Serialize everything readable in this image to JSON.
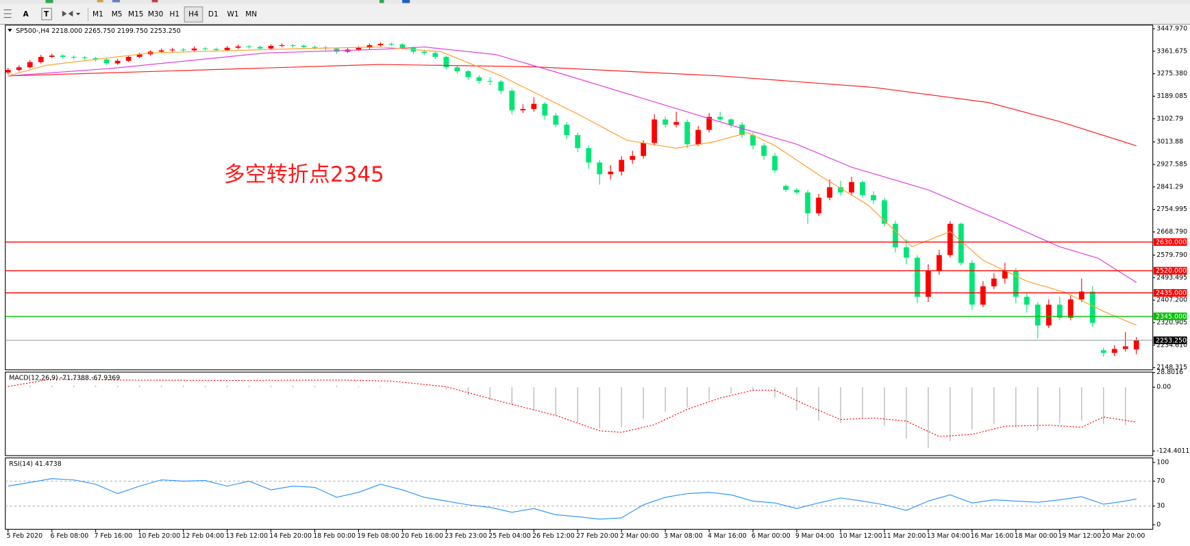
{
  "toolbar": {
    "tools": [
      "A",
      "T"
    ],
    "timeframes": [
      "M1",
      "M5",
      "M15",
      "M30",
      "H1",
      "H4",
      "D1",
      "W1",
      "MN"
    ],
    "selected": "H4"
  },
  "chart_data": [
    {
      "type": "candlestick",
      "title": "SP500-,H4  2218.000 2265.750 2199.750 2253.250",
      "annotation": "多空转折点2345",
      "up_color": "#ff0000",
      "down_color": "#00e676",
      "x": [
        0,
        2,
        4,
        6,
        8,
        10,
        12,
        14,
        16,
        18,
        20,
        22,
        24,
        26,
        28,
        30,
        32,
        34,
        36,
        38,
        40,
        42,
        44,
        46,
        48,
        50,
        52,
        54,
        56,
        58,
        60,
        62,
        64,
        66,
        68,
        70,
        72,
        74,
        76,
        78,
        80,
        82,
        84,
        86,
        88,
        90,
        92,
        94,
        96,
        98,
        100,
        102,
        104,
        106,
        108,
        110,
        112,
        114,
        116,
        118,
        120,
        122,
        124,
        126,
        128,
        130,
        132,
        134,
        136,
        138,
        140,
        142,
        144,
        146,
        148,
        150,
        152,
        154,
        156,
        158,
        160,
        162,
        164,
        166,
        168,
        170,
        172,
        174,
        176,
        178,
        180,
        182,
        184,
        186,
        188,
        190,
        192,
        194,
        196,
        198,
        200,
        202,
        204,
        206
      ],
      "open": [
        3280,
        3290,
        3300,
        3320,
        3340,
        3345,
        3340,
        3338,
        3335,
        3330,
        3315,
        3325,
        3340,
        3350,
        3360,
        3365,
        3368,
        3365,
        3372,
        3370,
        3366,
        3375,
        3380,
        3378,
        3372,
        3382,
        3385,
        3383,
        3378,
        3376,
        3372,
        3360,
        3368,
        3375,
        3385,
        3390,
        3388,
        3375,
        3360,
        3355,
        3340,
        3300,
        3285,
        3262,
        3248,
        3245,
        3210,
        3135,
        3140,
        3160,
        3115,
        3080,
        3040,
        2990,
        2935,
        2890,
        2900,
        2945,
        2960,
        3010,
        3100,
        3080,
        3090,
        3005,
        3060,
        3110,
        3100,
        3080,
        3040,
        3000,
        2960,
        2845,
        2830,
        2820,
        2740,
        2800,
        2840,
        2820,
        2860,
        2810,
        2790,
        2700,
        2610,
        2570,
        2420,
        2520,
        2580,
        2700,
        2550,
        2390,
        2460,
        2490,
        2520,
        2420,
        2390,
        2310,
        2390,
        2340,
        2410,
        2440,
        2215,
        2205,
        2220,
        2218
      ],
      "high": [
        3298,
        3308,
        3328,
        3348,
        3352,
        3350,
        3346,
        3344,
        3340,
        3335,
        3332,
        3346,
        3356,
        3366,
        3372,
        3375,
        3374,
        3380,
        3378,
        3376,
        3382,
        3387,
        3386,
        3384,
        3388,
        3392,
        3390,
        3388,
        3384,
        3382,
        3376,
        3374,
        3381,
        3391,
        3396,
        3395,
        3392,
        3380,
        3366,
        3360,
        3345,
        3306,
        3290,
        3270,
        3262,
        3252,
        3218,
        3158,
        3185,
        3168,
        3125,
        3090,
        3050,
        3000,
        2945,
        2925,
        2960,
        2980,
        3020,
        3120,
        3112,
        3130,
        3100,
        3075,
        3125,
        3130,
        3105,
        3090,
        3050,
        3010,
        2972,
        2850,
        2838,
        2830,
        2815,
        2870,
        2865,
        2880,
        2866,
        2825,
        2800,
        2712,
        2640,
        2580,
        2545,
        2600,
        2710,
        2705,
        2560,
        2480,
        2510,
        2550,
        2530,
        2435,
        2400,
        2410,
        2420,
        2425,
        2490,
        2460,
        2225,
        2235,
        2285,
        2265.75
      ],
      "low": [
        3272,
        3285,
        3295,
        3315,
        3335,
        3333,
        3330,
        3328,
        3322,
        3308,
        3310,
        3320,
        3335,
        3345,
        3355,
        3360,
        3358,
        3360,
        3364,
        3360,
        3362,
        3370,
        3372,
        3366,
        3368,
        3377,
        3376,
        3371,
        3368,
        3364,
        3352,
        3355,
        3363,
        3370,
        3380,
        3381,
        3368,
        3352,
        3347,
        3332,
        3292,
        3276,
        3252,
        3238,
        3232,
        3198,
        3120,
        3125,
        3130,
        3100,
        3070,
        3025,
        2975,
        2910,
        2850,
        2870,
        2885,
        2930,
        2950,
        3000,
        3070,
        3070,
        2990,
        2998,
        3050,
        3092,
        3068,
        3030,
        2985,
        2945,
        2895,
        2822,
        2812,
        2700,
        2730,
        2790,
        2808,
        2812,
        2800,
        2775,
        2690,
        2590,
        2545,
        2395,
        2400,
        2505,
        2570,
        2540,
        2370,
        2380,
        2450,
        2470,
        2395,
        2360,
        2260,
        2300,
        2330,
        2330,
        2400,
        2305,
        2190,
        2192,
        2210,
        2199.75
      ],
      "close": [
        3290,
        3300,
        3320,
        3340,
        3345,
        3340,
        3338,
        3335,
        3330,
        3315,
        3325,
        3340,
        3350,
        3360,
        3365,
        3368,
        3365,
        3372,
        3370,
        3366,
        3375,
        3380,
        3378,
        3372,
        3382,
        3385,
        3383,
        3378,
        3376,
        3372,
        3360,
        3368,
        3375,
        3385,
        3390,
        3388,
        3375,
        3360,
        3355,
        3340,
        3300,
        3285,
        3262,
        3248,
        3245,
        3210,
        3135,
        3140,
        3160,
        3115,
        3080,
        3040,
        2990,
        2935,
        2890,
        2900,
        2945,
        2960,
        3010,
        3100,
        3080,
        3090,
        3005,
        3060,
        3110,
        3100,
        3080,
        3040,
        3000,
        2960,
        2905,
        2830,
        2820,
        2740,
        2800,
        2840,
        2820,
        2860,
        2810,
        2790,
        2700,
        2610,
        2570,
        2420,
        2520,
        2580,
        2700,
        2550,
        2390,
        2460,
        2490,
        2520,
        2420,
        2390,
        2310,
        2390,
        2340,
        2410,
        2440,
        2320,
        2205,
        2220,
        2230,
        2253.25
      ],
      "series": [
        {
          "color": "#ff2020",
          "x": [
            0,
            68,
            96,
            130,
            158,
            179,
            192,
            206
          ],
          "values": [
            3267,
            3311,
            3302,
            3267,
            3223,
            3165,
            3092,
            2999
          ]
        },
        {
          "color": "#e040e0",
          "x": [
            0,
            19,
            47,
            68,
            76,
            89,
            100,
            116,
            132,
            144,
            154,
            168,
            181,
            192,
            199,
            206
          ],
          "values": [
            3267,
            3296,
            3355,
            3369,
            3378,
            3349,
            3282,
            3180,
            3078,
            3005,
            2917,
            2830,
            2714,
            2612,
            2568,
            2475
          ]
        },
        {
          "color": "#ffa030",
          "x": [
            0,
            7,
            26,
            54,
            68,
            79,
            90,
            104,
            113,
            122,
            129,
            135,
            140,
            149,
            157,
            165,
            172,
            178,
            186,
            193,
            200,
            206
          ],
          "values": [
            3267,
            3308,
            3355,
            3372,
            3378,
            3360,
            3267,
            3121,
            3020,
            2990,
            3015,
            3049,
            3000,
            2874,
            2772,
            2612,
            2670,
            2560,
            2480,
            2437,
            2364,
            2311
          ]
        }
      ],
      "levels": [
        {
          "value": 2630,
          "label": "2630.000",
          "color": "#ff0000"
        },
        {
          "value": 2520,
          "label": "2520.000",
          "color": "#ff0000"
        },
        {
          "value": 2435,
          "label": "2435.000",
          "color": "#ff0000"
        },
        {
          "value": 2345,
          "label": "2345.000",
          "color": "#00c000"
        },
        {
          "value": 2253.25,
          "label": "2253.250",
          "color": "#000000",
          "line_color": "#a0a0a0"
        }
      ],
      "xlim": [
        -0.5,
        209
      ],
      "ylim": [
        2140,
        3462
      ],
      "yticks": [
        {
          "value": 3447.97,
          "label": "3447.970"
        },
        {
          "value": 3361.675,
          "label": "3361.675"
        },
        {
          "value": 3275.38,
          "label": "3275.380"
        },
        {
          "value": 3189.085,
          "label": "3189.085"
        },
        3102.79,
        3013.88,
        2927.585,
        2841.29,
        2754.995,
        {
          "value": 2668.79,
          "label": "2668.790"
        },
        {
          "value": 2579.79,
          "label": "2579.790"
        },
        2493.495,
        {
          "value": 2407.2,
          "label": "2407.200"
        },
        2320.905,
        {
          "value": 2234.61,
          "label": "2234.610"
        },
        2148.315
      ],
      "xticks": [
        {
          "value": 0,
          "label": "5 Feb 2020"
        },
        {
          "value": 8,
          "label": "6 Feb 08:00"
        },
        {
          "value": 16,
          "label": "7 Feb 16:00"
        },
        {
          "value": 24,
          "label": "10 Feb 20:00"
        },
        {
          "value": 32,
          "label": "12 Feb 04:00"
        },
        {
          "value": 40,
          "label": "13 Feb 12:00"
        },
        {
          "value": 48,
          "label": "14 Feb 20:00"
        },
        {
          "value": 56,
          "label": "18 Feb 00:00"
        },
        {
          "value": 64,
          "label": "19 Feb 08:00"
        },
        {
          "value": 72,
          "label": "20 Feb 16:00"
        },
        {
          "value": 80,
          "label": "23 Feb 23:00"
        },
        {
          "value": 88,
          "label": "25 Feb 04:00"
        },
        {
          "value": 96,
          "label": "26 Feb 12:00"
        },
        {
          "value": 104,
          "label": "27 Feb 20:00"
        },
        {
          "value": 112,
          "label": "2 Mar 00:00"
        },
        {
          "value": 120,
          "label": "3 Mar 08:00"
        },
        {
          "value": 128,
          "label": "4 Mar 16:00"
        },
        {
          "value": 136,
          "label": "6 Mar 00:00"
        },
        {
          "value": 144,
          "label": "9 Mar 04:00"
        },
        {
          "value": 152,
          "label": "10 Mar 12:00"
        },
        {
          "value": 160,
          "label": "11 Mar 20:00"
        },
        {
          "value": 168,
          "label": "13 Mar 04:00"
        },
        {
          "value": 176,
          "label": "16 Mar 16:00"
        },
        {
          "value": 184,
          "label": "18 Mar 00:00"
        },
        {
          "value": 192,
          "label": "19 Mar 12:00"
        },
        {
          "value": 200,
          "label": "20 Mar 20:00"
        }
      ]
    },
    {
      "type": "macd",
      "title": "MACD(12,26,9) -71.7388 -67.9369",
      "color": "#b8b8b8",
      "x": [
        0,
        4,
        8,
        12,
        16,
        20,
        24,
        28,
        32,
        36,
        40,
        44,
        48,
        52,
        56,
        60,
        64,
        68,
        72,
        76,
        80,
        84,
        88,
        92,
        96,
        100,
        104,
        108,
        112,
        116,
        120,
        124,
        128,
        132,
        136,
        140,
        144,
        148,
        152,
        156,
        160,
        164,
        168,
        172,
        176,
        180,
        184,
        188,
        192,
        196,
        200,
        204
      ],
      "values": [
        2,
        3,
        3,
        3,
        3,
        3,
        3,
        3,
        3,
        3,
        3,
        3,
        3,
        3,
        3,
        3,
        2,
        2,
        1,
        0,
        -5,
        -15,
        -25,
        -35,
        -45,
        -55,
        -68,
        -80,
        -78,
        -62,
        -48,
        -40,
        -25,
        -12,
        -8,
        -20,
        -45,
        -65,
        -70,
        -62,
        -75,
        -100,
        -118,
        -105,
        -82,
        -72,
        -78,
        -85,
        -70,
        -65,
        -72,
        -74
      ],
      "signal": {
        "color": "#ff0000",
        "x": [
          0,
          8,
          20,
          40,
          60,
          70,
          80,
          90,
          100,
          108,
          112,
          118,
          124,
          130,
          136,
          140,
          146,
          152,
          158,
          164,
          170,
          176,
          182,
          190,
          196,
          200,
          206
        ],
        "values": [
          1.5,
          16,
          14,
          13,
          14,
          12,
          1,
          -28,
          -55,
          -85,
          -88,
          -73,
          -43,
          -21,
          -6,
          -6,
          -36,
          -63,
          -60,
          -66,
          -96,
          -92,
          -76,
          -74,
          -78,
          -58,
          -68
        ]
      },
      "ylim": [
        -133.4,
        29.5
      ],
      "yticks": [
        28.8016,
        {
          "value": 0,
          "label": "0.00"
        },
        -124.4011
      ]
    },
    {
      "type": "line",
      "title": "RSI(14) 41.4738",
      "color": "#1e90ff",
      "x": [
        0,
        4,
        8,
        12,
        16,
        20,
        24,
        28,
        32,
        36,
        40,
        44,
        48,
        52,
        56,
        60,
        64,
        68,
        72,
        76,
        80,
        84,
        88,
        92,
        96,
        100,
        104,
        108,
        112,
        116,
        120,
        124,
        128,
        132,
        136,
        140,
        144,
        148,
        152,
        156,
        160,
        164,
        168,
        172,
        176,
        180,
        184,
        188,
        192,
        196,
        200,
        204,
        206
      ],
      "values": [
        62,
        68,
        74,
        72,
        65,
        50,
        62,
        72,
        70,
        71,
        62,
        70,
        56,
        62,
        60,
        44,
        52,
        65,
        56,
        44,
        38,
        32,
        28,
        20,
        26,
        16,
        13,
        9,
        11,
        32,
        44,
        50,
        52,
        48,
        38,
        35,
        26,
        35,
        43,
        38,
        32,
        23,
        38,
        48,
        35,
        40,
        38,
        36,
        40,
        45,
        33,
        38,
        41.47
      ],
      "dotted_levels": [
        70,
        30
      ],
      "ylim": [
        -7.3,
        107.3
      ],
      "yticks": [
        100,
        70,
        30,
        0
      ]
    }
  ]
}
